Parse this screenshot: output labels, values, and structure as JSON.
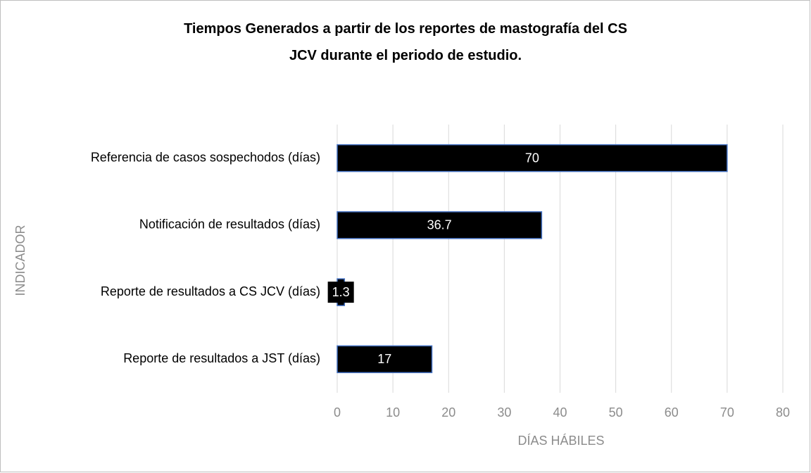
{
  "chart_data": {
    "type": "bar",
    "orientation": "horizontal",
    "title": "Tiempos Generados a partir de los reportes de mastografía del CS JCV durante el periodo de estudio.",
    "xlabel": "DÍAS HÁBILES",
    "ylabel": "INDICADOR",
    "categories": [
      "Referencia de casos sospechodos (días)",
      "Notificación de resultados (días)",
      "Reporte de resultados a CS JCV (días)",
      "Reporte de resultados a JST (días)"
    ],
    "values": [
      70,
      36.7,
      1.3,
      17
    ],
    "color": "#000000",
    "edgecolor": "#4472c4",
    "xlim": [
      0,
      80
    ],
    "xticks": [
      0,
      10,
      20,
      30,
      40,
      50,
      60,
      70,
      80
    ],
    "grid": true
  }
}
